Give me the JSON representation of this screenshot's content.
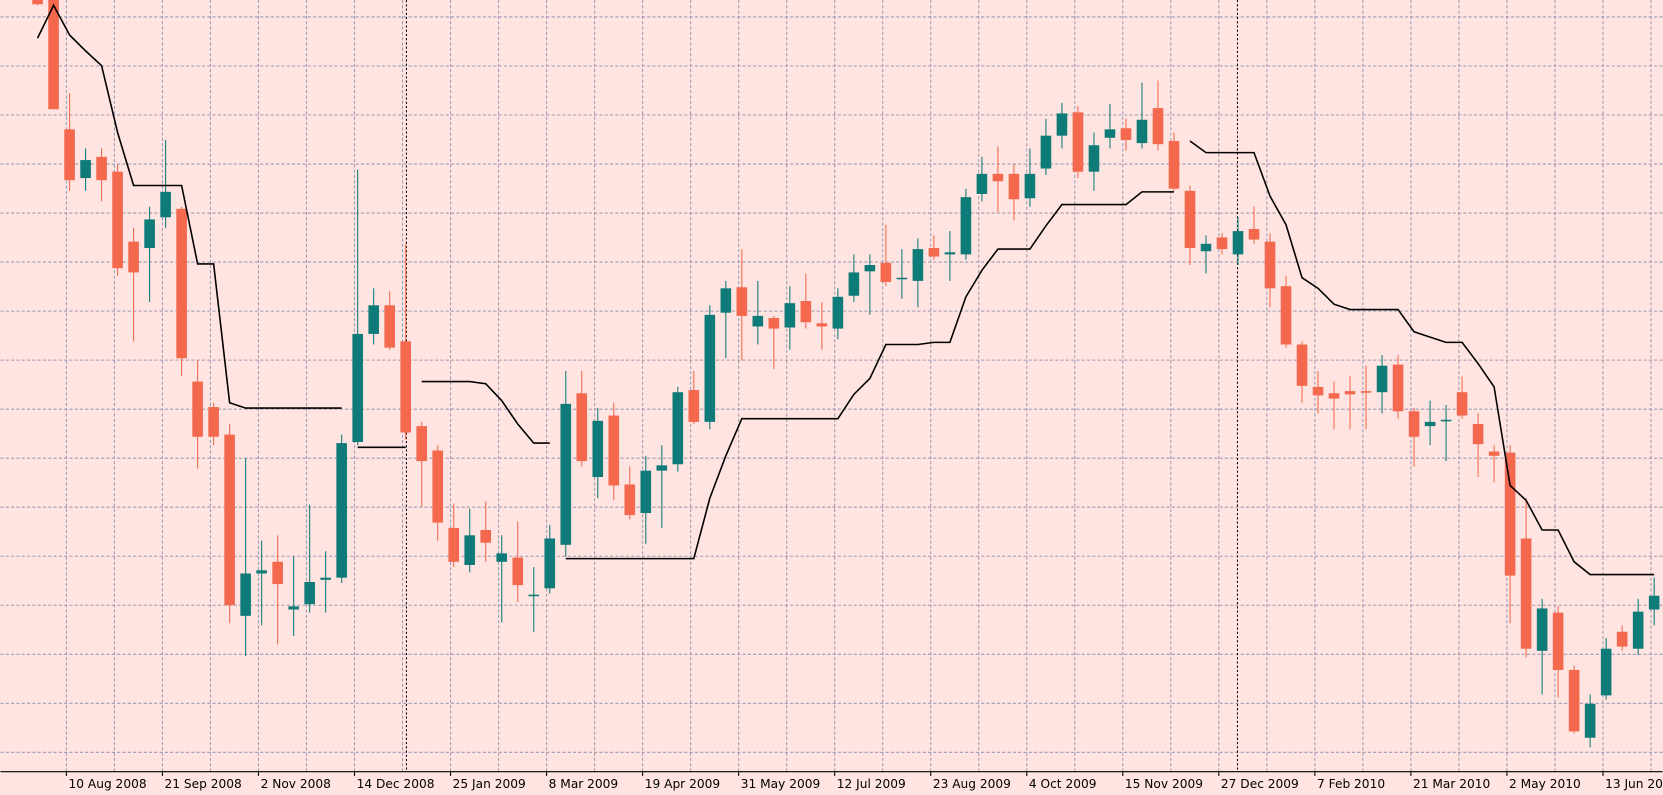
{
  "chart_data": {
    "type": "candlestick",
    "categories": [
      null,
      null,
      "10 Aug 2008",
      null,
      null,
      null,
      null,
      null,
      "21 Sep 2008",
      null,
      null,
      null,
      null,
      null,
      "2 Nov 2008",
      null,
      null,
      null,
      null,
      null,
      "14 Dec 2008",
      null,
      null,
      null,
      null,
      null,
      "25 Jan 2009",
      null,
      null,
      null,
      null,
      null,
      "8 Mar 2009",
      null,
      null,
      null,
      null,
      null,
      "19 Apr 2009",
      null,
      null,
      null,
      null,
      null,
      "31 May 2009",
      null,
      null,
      null,
      null,
      null,
      "12 Jul 2009",
      null,
      null,
      null,
      null,
      null,
      "23 Aug 2009",
      null,
      null,
      null,
      null,
      null,
      "4 Oct 2009",
      null,
      null,
      null,
      null,
      null,
      "15 Nov 2009",
      null,
      null,
      null,
      null,
      null,
      "27 Dec 2009",
      null,
      null,
      null,
      null,
      null,
      "7 Feb 2010",
      null,
      null,
      null,
      null,
      null,
      "21 Mar 2010",
      null,
      null,
      null,
      null,
      null,
      "2 May 2010",
      null,
      null,
      null,
      null,
      null,
      "13 Jun 2010",
      null,
      null,
      null
    ],
    "open": [
      750,
      750,
      628,
      582,
      602,
      588,
      522,
      516,
      545,
      553,
      390,
      366,
      340,
      169,
      209,
      220,
      175,
      180,
      203,
      205,
      333,
      435,
      462,
      428,
      348,
      325,
      252,
      217,
      250,
      220,
      224,
      188,
      195,
      236,
      379,
      300,
      358,
      293,
      266,
      306,
      312,
      382,
      352,
      455,
      479,
      442,
      450,
      441,
      466,
      445,
      440,
      471,
      494,
      502,
      487,
      485,
      516,
      510,
      510,
      567,
      586,
      586,
      563,
      591,
      622,
      644,
      588,
      620,
      629,
      615,
      648,
      617,
      570,
      513,
      526,
      510,
      534,
      522,
      480,
      425,
      385,
      379,
      381,
      381,
      380,
      406,
      362,
      348,
      353,
      380,
      350,
      324,
      323,
      242,
      136,
      172,
      118,
      54,
      94,
      154,
      138,
      175
    ],
    "high": [
      750,
      750,
      662,
      610,
      610,
      595,
      535,
      555,
      618,
      555,
      410,
      370,
      350,
      318,
      240,
      245,
      225,
      274,
      230,
      340,
      590,
      478,
      475,
      520,
      352,
      330,
      275,
      270,
      277,
      245,
      258,
      215,
      255,
      400,
      400,
      365,
      370,
      310,
      320,
      330,
      385,
      400,
      462,
      485,
      515,
      485,
      452,
      480,
      492,
      465,
      478,
      510,
      510,
      538,
      515,
      525,
      528,
      532,
      572,
      602,
      612,
      595,
      610,
      638,
      653,
      650,
      625,
      652,
      638,
      672,
      674,
      625,
      575,
      528,
      530,
      545,
      555,
      530,
      490,
      428,
      400,
      390,
      395,
      405,
      415,
      415,
      365,
      372,
      368,
      395,
      360,
      330,
      330,
      280,
      185,
      178,
      122,
      95,
      148,
      160,
      185,
      205
    ],
    "low": [
      745,
      647,
      570,
      570,
      560,
      490,
      428,
      465,
      535,
      395,
      308,
      330,
      162,
      131,
      160,
      142,
      150,
      172,
      172,
      200,
      330,
      425,
      420,
      335,
      272,
      240,
      215,
      210,
      220,
      163,
      182,
      154,
      190,
      225,
      310,
      280,
      278,
      260,
      237,
      252,
      305,
      350,
      345,
      412,
      410,
      425,
      402,
      420,
      440,
      420,
      430,
      465,
      453,
      480,
      468,
      460,
      505,
      485,
      505,
      560,
      550,
      542,
      555,
      585,
      610,
      582,
      570,
      610,
      608,
      610,
      608,
      570,
      500,
      492,
      510,
      500,
      520,
      460,
      422,
      370,
      360,
      345,
      345,
      345,
      360,
      355,
      310,
      330,
      315,
      355,
      300,
      295,
      162,
      130,
      95,
      92,
      58,
      45,
      90,
      136,
      132,
      160
    ],
    "close": [
      746,
      647,
      580,
      599,
      580,
      497,
      493,
      543,
      569,
      412,
      338,
      338,
      179,
      209,
      212,
      199,
      178,
      201,
      205,
      332,
      435,
      462,
      422,
      342,
      315,
      257,
      220,
      245,
      238,
      228,
      198,
      189,
      242,
      369,
      315,
      353,
      292,
      264,
      306,
      311,
      380,
      352,
      453,
      478,
      452,
      452,
      440,
      464,
      446,
      442,
      470,
      493,
      500,
      484,
      488,
      515,
      508,
      512,
      564,
      586,
      579,
      562,
      586,
      622,
      643,
      588,
      613,
      628,
      618,
      637,
      614,
      572,
      516,
      520,
      515,
      532,
      524,
      478,
      425,
      386,
      377,
      374,
      378,
      380,
      405,
      362,
      338,
      352,
      354,
      358,
      331,
      320,
      207,
      138,
      176,
      118,
      60,
      86,
      138,
      140,
      173,
      188
    ],
    "up_color": "#0f7b78",
    "down_color": "#f4694d",
    "lines": [
      {
        "color": "#000000",
        "values": [
          714,
          745,
          717,
          702,
          688,
          625,
          575,
          575,
          575,
          575,
          501,
          501,
          370,
          365,
          365,
          365,
          365,
          365,
          365,
          365,
          null,
          null,
          null,
          null,
          390,
          390,
          390,
          390,
          388,
          372,
          350,
          332,
          332,
          null,
          null,
          null,
          null,
          null,
          null,
          null,
          null,
          null,
          null,
          null,
          null,
          null,
          null,
          null,
          null,
          null,
          null,
          null,
          null,
          null,
          null,
          null,
          null,
          null,
          null,
          null,
          null,
          null,
          null,
          null,
          null,
          null,
          null,
          null,
          null,
          null,
          null,
          null,
          617,
          606,
          606,
          606,
          606,
          565,
          538,
          488,
          478,
          463,
          458,
          458,
          458,
          458,
          437,
          432,
          427,
          427,
          407,
          385,
          292,
          278,
          250,
          250,
          220,
          208,
          208,
          208,
          208,
          208
        ]
      },
      {
        "color": "#000000",
        "values": [
          null,
          null,
          null,
          null,
          null,
          null,
          null,
          null,
          null,
          null,
          null,
          null,
          null,
          null,
          null,
          null,
          null,
          null,
          null,
          null,
          328,
          328,
          328,
          328,
          null,
          null,
          null,
          null,
          null,
          null,
          null,
          null,
          null,
          223,
          223,
          223,
          223,
          223,
          223,
          223,
          223,
          223,
          280,
          320,
          355,
          355,
          355,
          355,
          355,
          355,
          355,
          378,
          393,
          425,
          425,
          425,
          427,
          427,
          470,
          495,
          515,
          515,
          515,
          537,
          557,
          557,
          557,
          557,
          557,
          569,
          569,
          569,
          null,
          null,
          null,
          null,
          null,
          null,
          null,
          null,
          null,
          null,
          null,
          null,
          null,
          null,
          null,
          null,
          null,
          null,
          null,
          null,
          null,
          null,
          null,
          null,
          null,
          null,
          null,
          null,
          null,
          null
        ]
      }
    ],
    "ylim": [
      22,
      750
    ],
    "grid": true
  }
}
